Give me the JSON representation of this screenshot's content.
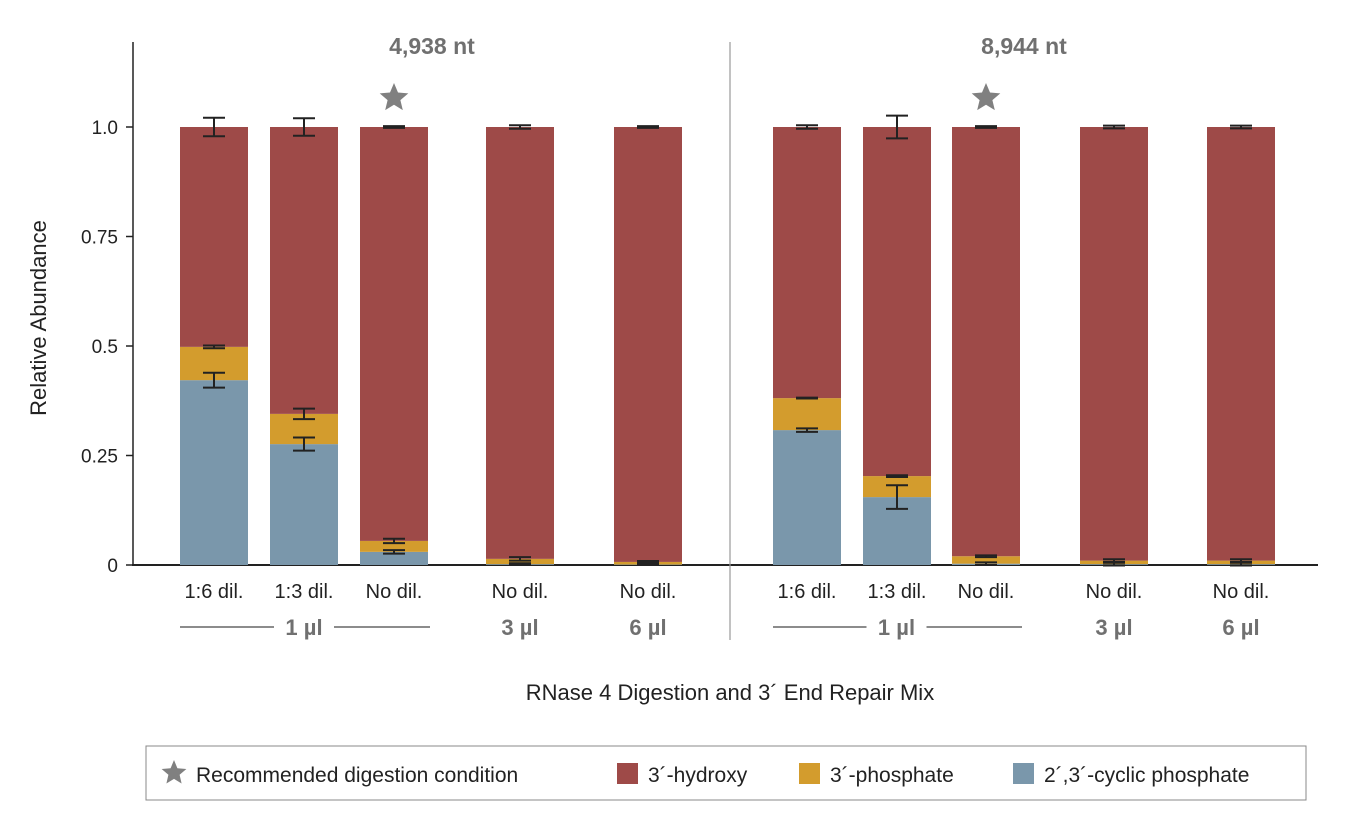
{
  "chart_data": {
    "type": "bar",
    "stacked": true,
    "ylabel": "Relative Abundance",
    "xlabel": "RNase 4 Digestion and 3´ End Repair Mix",
    "ylim": [
      0,
      1.19
    ],
    "yticks": [
      {
        "v": 0,
        "label": "0"
      },
      {
        "v": 0.25,
        "label": "0.25"
      },
      {
        "v": 0.5,
        "label": "0.5"
      },
      {
        "v": 0.75,
        "label": "0.75"
      },
      {
        "v": 1.0,
        "label": "1.0"
      }
    ],
    "grid": false,
    "legend_position": "bottom",
    "colors": {
      "hydroxy": "#9e4a48",
      "phosphate": "#d39c2d",
      "cyclic": "#7a97ab",
      "star": "#808080",
      "group_text": "#707070"
    },
    "legend": [
      {
        "key": "star",
        "label": "Recommended digestion condition"
      },
      {
        "key": "hydroxy",
        "label": "3´-hydroxy"
      },
      {
        "key": "phosphate",
        "label": "3´-phosphate"
      },
      {
        "key": "cyclic",
        "label": "2´,3´-cyclic phosphate"
      }
    ],
    "panels": [
      {
        "title": "4,938 nt",
        "categories": [
          "1:6 dil.",
          "1:3 dil.",
          "No dil.",
          "No dil.",
          "No dil."
        ],
        "groups": [
          "1 µl",
          "1 µl",
          "1 µl",
          "3 µl",
          "6 µl"
        ],
        "recommended_index": 2,
        "series": [
          {
            "name": "2´,3´-cyclic phosphate",
            "key": "cyclic",
            "values": [
              0.422,
              0.276,
              0.03,
              0.002,
              0.001
            ],
            "errors": [
              0.017,
              0.015,
              0.004,
              0.002,
              0.001
            ]
          },
          {
            "name": "3´-phosphate",
            "key": "phosphate",
            "values": [
              0.076,
              0.069,
              0.025,
              0.012,
              0.006
            ],
            "errors": [
              0.003,
              0.012,
              0.005,
              0.004,
              0.002
            ]
          },
          {
            "name": "3´-hydroxy",
            "key": "hydroxy",
            "values": [
              0.502,
              0.655,
              0.945,
              0.986,
              0.993
            ],
            "errors": [
              0.021,
              0.02,
              0.002,
              0.004,
              0.002
            ]
          }
        ]
      },
      {
        "title": "8,944 nt",
        "categories": [
          "1:6 dil.",
          "1:3 dil.",
          "No dil.",
          "No dil.",
          "No dil."
        ],
        "groups": [
          "1 µl",
          "1 µl",
          "1 µl",
          "3 µl",
          "6 µl"
        ],
        "recommended_index": 2,
        "series": [
          {
            "name": "2´,3´-cyclic phosphate",
            "key": "cyclic",
            "values": [
              0.308,
              0.155,
              0.003,
              0.002,
              0.002
            ],
            "errors": [
              0.004,
              0.027,
              0.003,
              0.003,
              0.003
            ]
          },
          {
            "name": "3´-phosphate",
            "key": "phosphate",
            "values": [
              0.073,
              0.048,
              0.017,
              0.008,
              0.008
            ],
            "errors": [
              0.001,
              0.002,
              0.002,
              0.003,
              0.003
            ]
          },
          {
            "name": "3´-hydroxy",
            "key": "hydroxy",
            "values": [
              0.619,
              0.797,
              0.98,
              0.99,
              0.99
            ],
            "errors": [
              0.004,
              0.026,
              0.002,
              0.003,
              0.003
            ]
          }
        ]
      }
    ]
  }
}
